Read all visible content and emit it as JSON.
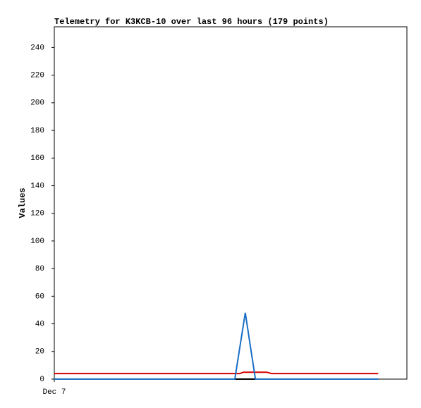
{
  "chart_data": {
    "type": "line",
    "title": "Telemetry for K3KCB-10 over last 96 hours (179 points)",
    "y_label": "Values",
    "xlim": [
      0,
      104.5
    ],
    "xticks": [
      {
        "value": 0,
        "label": "Dec 7"
      }
    ],
    "ylim": [
      0,
      255
    ],
    "yticks": [
      0,
      20,
      40,
      60,
      80,
      100,
      120,
      140,
      160,
      180,
      200,
      220,
      240
    ],
    "series": [
      {
        "color": "#000000",
        "x": [
          0,
          96
        ],
        "values": [
          0,
          0
        ]
      },
      {
        "color": "#d40000",
        "x": [
          0,
          55,
          56,
          63,
          64.4,
          96
        ],
        "values": [
          4,
          4,
          5,
          5,
          4,
          4
        ]
      },
      {
        "color": "#1a6fc4",
        "x": [
          0,
          53.5,
          56.6,
          59.6,
          96
        ],
        "values": [
          0,
          0,
          48,
          0,
          0
        ]
      }
    ]
  }
}
